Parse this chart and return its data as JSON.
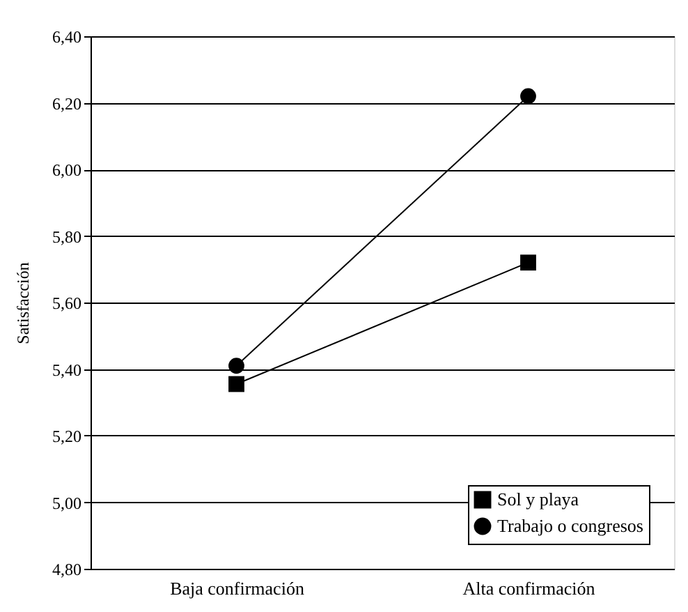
{
  "chart_data": {
    "type": "line",
    "ylabel": "Satisfacción",
    "categories": [
      "Baja confirmación",
      "Alta confirmación"
    ],
    "series": [
      {
        "name": "Sol y playa",
        "color": "#000000",
        "marker": "square",
        "values": [
          5.355,
          5.72
        ]
      },
      {
        "name": "Trabajo o congresos",
        "color": "#000000",
        "marker": "circle",
        "values": [
          5.41,
          6.22
        ]
      }
    ],
    "ylim": [
      4.8,
      6.4
    ],
    "yticks": [
      {
        "value": 4.8,
        "label": "4,80"
      },
      {
        "value": 5.0,
        "label": "5,00"
      },
      {
        "value": 5.2,
        "label": "5,20"
      },
      {
        "value": 5.4,
        "label": "5,40"
      },
      {
        "value": 5.6,
        "label": "5,60"
      },
      {
        "value": 5.8,
        "label": "5,80"
      },
      {
        "value": 6.0,
        "label": "6,00"
      },
      {
        "value": 6.2,
        "label": "6,20"
      },
      {
        "value": 6.4,
        "label": "6,40"
      }
    ],
    "grid": "y",
    "legend": "bottom right",
    "line_style": "solid"
  }
}
